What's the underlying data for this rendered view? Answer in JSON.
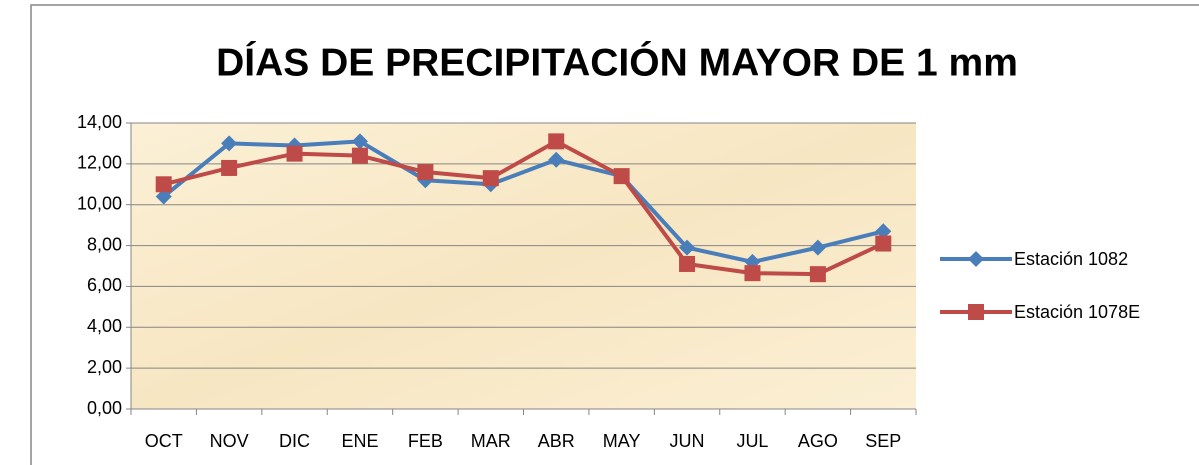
{
  "chart_data": {
    "type": "line",
    "title": "DÍAS DE PRECIPITACIÓN MAYOR DE 1 mm",
    "categories": [
      "OCT",
      "NOV",
      "DIC",
      "ENE",
      "FEB",
      "MAR",
      "ABR",
      "MAY",
      "JUN",
      "JUL",
      "AGO",
      "SEP"
    ],
    "series": [
      {
        "name": "Estación 1082",
        "color": "#4a7ebb",
        "marker": "diamond",
        "values": [
          10.4,
          13.0,
          12.9,
          13.1,
          11.2,
          11.0,
          12.2,
          11.4,
          7.9,
          7.2,
          7.9,
          8.7
        ]
      },
      {
        "name": "Estación 1078E",
        "color": "#be4b48",
        "marker": "square",
        "values": [
          11.0,
          11.8,
          12.5,
          12.4,
          11.6,
          11.3,
          13.1,
          11.4,
          7.1,
          6.65,
          6.6,
          8.1
        ]
      }
    ],
    "ylim": [
      0,
      14
    ],
    "yticks": [
      {
        "value": 0,
        "label": "0,00"
      },
      {
        "value": 2,
        "label": "2,00"
      },
      {
        "value": 4,
        "label": "4,00"
      },
      {
        "value": 6,
        "label": "6,00"
      },
      {
        "value": 8,
        "label": "8,00"
      },
      {
        "value": 10,
        "label": "10,00"
      },
      {
        "value": 12,
        "label": "12,00"
      },
      {
        "value": 14,
        "label": "14,00"
      }
    ],
    "grid": true,
    "legend": "right"
  }
}
